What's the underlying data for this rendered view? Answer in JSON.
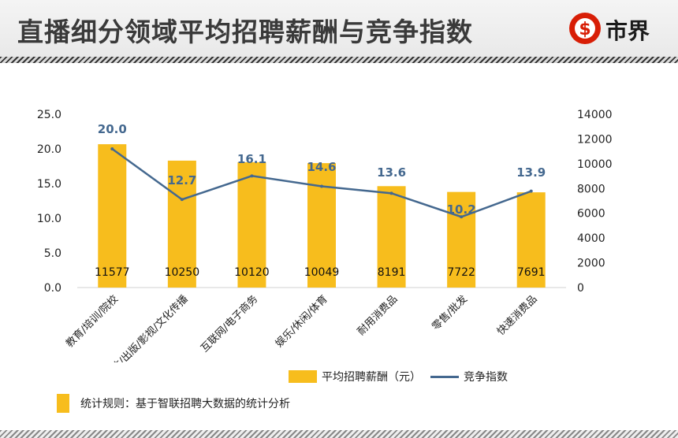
{
  "header": {
    "title": "直播细分领域平均招聘薪酬与竞争指数",
    "logo_text": "市界"
  },
  "chart_data": {
    "type": "bar",
    "categories": [
      "教育/培训/院校",
      "媒体/出版/影视/文化传播",
      "互联网/电子商务",
      "娱乐/休闲/体育",
      "耐用消费品",
      "零售/批发",
      "快速消费品"
    ],
    "series": [
      {
        "name": "平均招聘薪酬（元）",
        "type": "bar",
        "axis": "right",
        "values": [
          11577,
          10250,
          10120,
          10049,
          8191,
          7722,
          7691
        ]
      },
      {
        "name": "竞争指数",
        "type": "line",
        "axis": "left",
        "values": [
          20.0,
          12.7,
          16.1,
          14.6,
          13.6,
          10.2,
          13.9
        ]
      }
    ],
    "bar_labels": [
      "11577",
      "10250",
      "10120",
      "10049",
      "8191",
      "7722",
      "7691"
    ],
    "line_labels": [
      "20.0",
      "12.7",
      "16.1",
      "14.6",
      "13.6",
      "10.2",
      "13.9"
    ],
    "left_ticks": [
      "0.0",
      "5.0",
      "10.0",
      "15.0",
      "20.0",
      "25.0"
    ],
    "right_ticks": [
      "0",
      "2000",
      "4000",
      "6000",
      "8000",
      "10000",
      "12000",
      "14000"
    ],
    "ylim_left": [
      0,
      25
    ],
    "ylim_right": [
      0,
      14000
    ],
    "legend_position": "bottom",
    "colors": {
      "bar": "#f7bd1d",
      "line": "#44688f",
      "line_label": "#44688f"
    }
  },
  "footnote": "统计规则：基于智联招聘大数据的统计分析",
  "logo_colors": {
    "ring": "#d81e06",
    "inner": "#ffffff"
  }
}
